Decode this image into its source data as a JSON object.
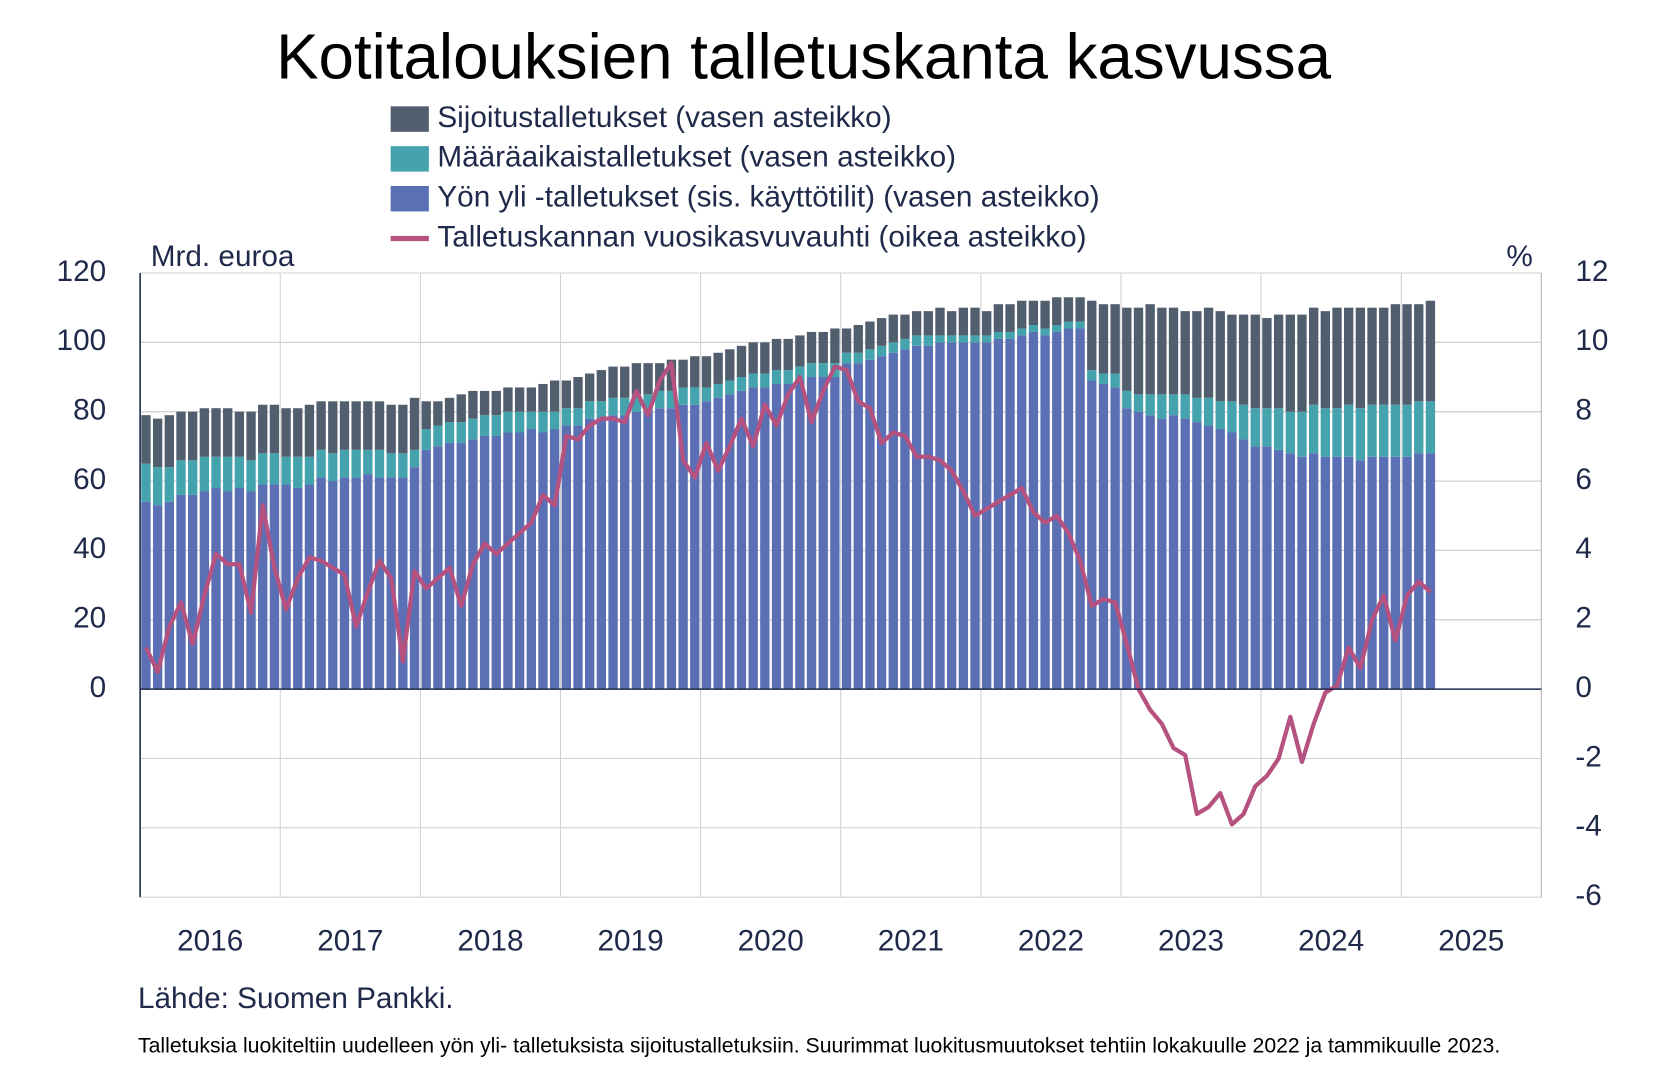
{
  "chart_data": {
    "type": "bar+line",
    "title": "Kotitalouksien talletuskanta kasvussa",
    "y_label": "Mrd. euroa",
    "y2_label": "%",
    "source": "Lähde: Suomen Pankki.",
    "note": "Talletuksia luokiteltiin uudelleen yön yli- talletuksista sijoitustalletuksiin. Suurimmat luokitusmuutokset tehtiin lokakuulle 2022 ja tammikuulle 2023.",
    "categories": [
      "2016",
      null,
      null,
      null,
      null,
      null,
      null,
      null,
      null,
      null,
      null,
      null,
      "2017",
      null,
      null,
      null,
      null,
      null,
      null,
      null,
      null,
      null,
      null,
      null,
      "2018",
      null,
      null,
      null,
      null,
      null,
      null,
      null,
      null,
      null,
      null,
      null,
      "2019",
      null,
      null,
      null,
      null,
      null,
      null,
      null,
      null,
      null,
      null,
      null,
      "2020",
      null,
      null,
      null,
      null,
      null,
      null,
      null,
      null,
      null,
      null,
      null,
      "2021",
      null,
      null,
      null,
      null,
      null,
      null,
      null,
      null,
      null,
      null,
      null,
      "2022",
      null,
      null,
      null,
      null,
      null,
      null,
      null,
      null,
      null,
      null,
      null,
      "2023",
      null,
      null,
      null,
      null,
      null,
      null,
      null,
      null,
      null,
      null,
      null,
      "2024",
      null,
      null,
      null,
      null,
      null,
      null,
      null,
      null,
      null,
      null,
      null,
      "2025",
      null,
      null
    ],
    "ylim": [
      -60,
      120
    ],
    "yticks": [
      0,
      20,
      40,
      60,
      80,
      100,
      120
    ],
    "y2lim": [
      -6,
      12
    ],
    "y2ticks": [
      -6,
      -4,
      -2,
      0,
      2,
      4,
      6,
      8,
      10,
      12
    ],
    "grid": true,
    "series": [
      {
        "name": "Sijoitustalletukset (vasen asteikko)",
        "type": "bar",
        "color": "#515e6e",
        "values": [
          14,
          14,
          15,
          14,
          14,
          14,
          14,
          14,
          13,
          14,
          14,
          14,
          14,
          14,
          15,
          14,
          15,
          14,
          14,
          14,
          14,
          14,
          14,
          15,
          8,
          7,
          7,
          8,
          8,
          7,
          7,
          7,
          7,
          7,
          8,
          9,
          8,
          9,
          8,
          9,
          9,
          9,
          9,
          9,
          8,
          9,
          8,
          9,
          9,
          9,
          9,
          9,
          9,
          9,
          9,
          9,
          9,
          9,
          9,
          10,
          7,
          8,
          8,
          8,
          8,
          7,
          7,
          7,
          8,
          7,
          8,
          8,
          7,
          8,
          8,
          8,
          7,
          8,
          8,
          7,
          7,
          20,
          20,
          20,
          24,
          25,
          26,
          25,
          25,
          24,
          25,
          26,
          26,
          25,
          26,
          27,
          26,
          27,
          28,
          28,
          28,
          28,
          29,
          28,
          29,
          28,
          28,
          29,
          29,
          28,
          29
        ]
      },
      {
        "name": "Määräaikaistalletukset (vasen asteikko)",
        "type": "bar",
        "color": "#45a3ad",
        "values": [
          11,
          11,
          10,
          10,
          10,
          10,
          9,
          10,
          9,
          9,
          9,
          9,
          8,
          9,
          8,
          8,
          8,
          8,
          8,
          7,
          8,
          7,
          7,
          5,
          6,
          6,
          6,
          6,
          6,
          6,
          6,
          6,
          6,
          5,
          6,
          5,
          5,
          5,
          5,
          5,
          5,
          5,
          5,
          5,
          5,
          5,
          5,
          5,
          4,
          4,
          4,
          4,
          4,
          4,
          4,
          4,
          4,
          4,
          4,
          4,
          3,
          3,
          3,
          3,
          3,
          3,
          3,
          3,
          2,
          2,
          2,
          2,
          2,
          2,
          2,
          2,
          2,
          2,
          2,
          2,
          2,
          3,
          3,
          4,
          5,
          5,
          6,
          7,
          6,
          7,
          7,
          8,
          8,
          9,
          10,
          11,
          11,
          12,
          12,
          13,
          14,
          14,
          14,
          15,
          15,
          15,
          15,
          15,
          15,
          15,
          15
        ]
      },
      {
        "name": "Yön yli -talletukset (sis. käyttötilit) (vasen asteikko)",
        "type": "bar",
        "color": "#5b6fb5",
        "values": [
          54,
          53,
          54,
          56,
          56,
          57,
          58,
          57,
          58,
          57,
          59,
          59,
          59,
          58,
          59,
          61,
          60,
          61,
          61,
          62,
          61,
          61,
          61,
          64,
          69,
          70,
          71,
          71,
          72,
          73,
          73,
          74,
          74,
          75,
          74,
          75,
          76,
          76,
          78,
          78,
          79,
          79,
          80,
          80,
          81,
          81,
          82,
          82,
          83,
          84,
          85,
          86,
          87,
          87,
          88,
          88,
          89,
          90,
          90,
          90,
          94,
          94,
          95,
          96,
          97,
          98,
          99,
          99,
          100,
          100,
          100,
          100,
          100,
          101,
          101,
          102,
          103,
          102,
          103,
          104,
          104,
          89,
          88,
          87,
          81,
          80,
          79,
          78,
          79,
          78,
          77,
          76,
          75,
          74,
          72,
          70,
          70,
          69,
          68,
          67,
          68,
          67,
          67,
          67,
          66,
          67,
          67,
          67,
          67,
          68,
          68
        ]
      },
      {
        "name": "Talletuskannan vuosikasvuvauhti (oikea asteikko)",
        "type": "line",
        "axis": "y2",
        "color": "#b5527f",
        "values": [
          1.2,
          0.5,
          1.8,
          2.5,
          1.3,
          2.7,
          3.9,
          3.6,
          3.6,
          2.2,
          5.3,
          3.5,
          2.3,
          3.2,
          3.8,
          3.7,
          3.5,
          3.3,
          1.8,
          2.8,
          3.7,
          3.2,
          0.8,
          3.4,
          2.9,
          3.2,
          3.5,
          2.4,
          3.6,
          4.2,
          3.9,
          4.2,
          4.5,
          4.8,
          5.6,
          5.3,
          7.3,
          7.2,
          7.6,
          7.8,
          7.8,
          7.7,
          8.6,
          7.9,
          8.9,
          9.4,
          6.6,
          6.1,
          7.1,
          6.3,
          7.0,
          7.8,
          7.0,
          8.2,
          7.6,
          8.5,
          9.0,
          7.7,
          8.6,
          9.3,
          9.2,
          8.3,
          8.1,
          7.1,
          7.4,
          7.3,
          6.7,
          6.7,
          6.6,
          6.3,
          5.7,
          5.0,
          5.2,
          5.4,
          5.6,
          5.8,
          5.1,
          4.8,
          5.0,
          4.5,
          3.7,
          2.4,
          2.6,
          2.5,
          1.3,
          0.0,
          -0.6,
          -1.0,
          -1.7,
          -1.9,
          -3.6,
          -3.4,
          -3.0,
          -3.9,
          -3.6,
          -2.8,
          -2.5,
          -2.0,
          -0.8,
          -2.1,
          -1.0,
          -0.1,
          0.1,
          1.2,
          0.6,
          2.0,
          2.7,
          1.4,
          2.7,
          3.1,
          2.8
        ]
      }
    ]
  }
}
